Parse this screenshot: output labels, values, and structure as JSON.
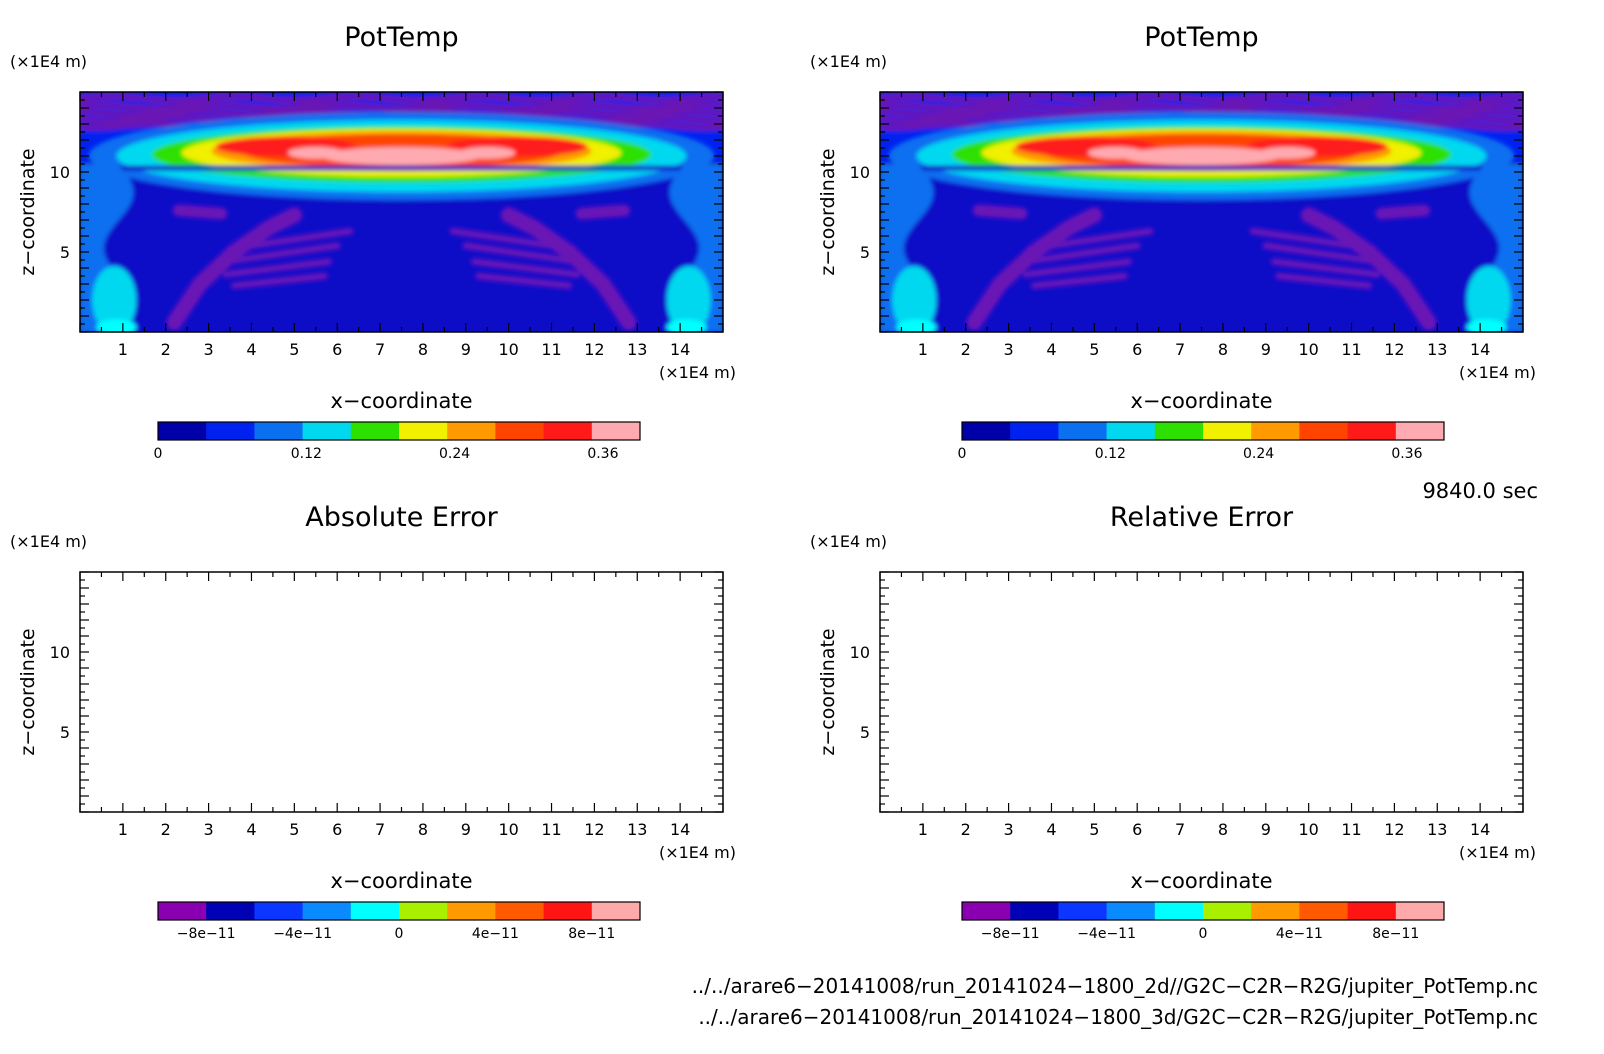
{
  "chart_data": [
    {
      "type": "heatmap",
      "title": "PotTemp",
      "xlabel": "x−coordinate",
      "ylabel": "z−coordinate",
      "x_unit": "(×1E4 m)",
      "y_unit": "(×1E4 m)",
      "xlim": [
        0,
        15
      ],
      "ylim": [
        0,
        15
      ],
      "xticks": [
        "1",
        "2",
        "3",
        "4",
        "5",
        "6",
        "7",
        "8",
        "9",
        "10",
        "11",
        "12",
        "13",
        "14"
      ],
      "yticks": [
        "5",
        "10"
      ],
      "colorbar": {
        "min": 0,
        "max": 0.39,
        "tick_values": [
          0,
          0.12,
          0.24,
          0.36
        ],
        "tick_labels": [
          "0",
          "0.12",
          "0.24",
          "0.36"
        ],
        "colors": [
          "#0000a8",
          "#0022f0",
          "#0a70f0",
          "#00d8f0",
          "#2ee000",
          "#f0f000",
          "#ff9a00",
          "#ff4400",
          "#ff1a1a",
          "#ffaab0"
        ]
      },
      "field": "plume: peak ~0.39 in a layer near z=11, low-value plumes on each side"
    },
    {
      "type": "heatmap",
      "title": "PotTemp",
      "xlabel": "x−coordinate",
      "ylabel": "z−coordinate",
      "x_unit": "(×1E4 m)",
      "y_unit": "(×1E4 m)",
      "xlim": [
        0,
        15
      ],
      "ylim": [
        0,
        15
      ],
      "xticks": [
        "1",
        "2",
        "3",
        "4",
        "5",
        "6",
        "7",
        "8",
        "9",
        "10",
        "11",
        "12",
        "13",
        "14"
      ],
      "yticks": [
        "5",
        "10"
      ],
      "colorbar": {
        "min": 0,
        "max": 0.39,
        "tick_values": [
          0,
          0.12,
          0.24,
          0.36
        ],
        "tick_labels": [
          "0",
          "0.12",
          "0.24",
          "0.36"
        ],
        "colors": [
          "#0000a8",
          "#0022f0",
          "#0a70f0",
          "#00d8f0",
          "#2ee000",
          "#f0f000",
          "#ff9a00",
          "#ff4400",
          "#ff1a1a",
          "#ffaab0"
        ]
      },
      "field": "identical to left panel"
    },
    {
      "type": "heatmap",
      "title": "Absolute Error",
      "xlabel": "x−coordinate",
      "ylabel": "z−coordinate",
      "x_unit": "(×1E4 m)",
      "y_unit": "(×1E4 m)",
      "xlim": [
        0,
        15
      ],
      "ylim": [
        0,
        15
      ],
      "xticks": [
        "1",
        "2",
        "3",
        "4",
        "5",
        "6",
        "7",
        "8",
        "9",
        "10",
        "11",
        "12",
        "13",
        "14"
      ],
      "yticks": [
        "5",
        "10"
      ],
      "colorbar": {
        "min": -1e-10,
        "max": 1e-10,
        "tick_values": [
          -8e-11,
          -4e-11,
          0,
          4e-11,
          8e-11
        ],
        "tick_labels": [
          "−8e−11",
          "−4e−11",
          "0",
          "4e−11",
          "8e−11"
        ],
        "colors": [
          "#8a00b0",
          "#0000b4",
          "#0a36ff",
          "#0a8aff",
          "#00ffff",
          "#a8f000",
          "#ff9a00",
          "#ff5a00",
          "#ff1414",
          "#ffaaaa"
        ]
      },
      "field": "empty (all values zero / blank)"
    },
    {
      "type": "heatmap",
      "title": "Relative Error",
      "xlabel": "x−coordinate",
      "ylabel": "z−coordinate",
      "x_unit": "(×1E4 m)",
      "y_unit": "(×1E4 m)",
      "xlim": [
        0,
        15
      ],
      "ylim": [
        0,
        15
      ],
      "xticks": [
        "1",
        "2",
        "3",
        "4",
        "5",
        "6",
        "7",
        "8",
        "9",
        "10",
        "11",
        "12",
        "13",
        "14"
      ],
      "yticks": [
        "5",
        "10"
      ],
      "colorbar": {
        "min": -1e-10,
        "max": 1e-10,
        "tick_values": [
          -8e-11,
          -4e-11,
          0,
          4e-11,
          8e-11
        ],
        "tick_labels": [
          "−8e−11",
          "−4e−11",
          "0",
          "4e−11",
          "8e−11"
        ],
        "colors": [
          "#8a00b0",
          "#0000b4",
          "#0a36ff",
          "#0a8aff",
          "#00ffff",
          "#a8f000",
          "#ff9a00",
          "#ff5a00",
          "#ff1414",
          "#ffaaaa"
        ]
      },
      "field": "empty (all values zero / blank)"
    }
  ],
  "time_label": "9840.0 sec",
  "file_paths": [
    "../../arare6−20141008/run_20141024−1800_2d//G2C−C2R−R2G/jupiter_PotTemp.nc",
    "../../arare6−20141008/run_20141024−1800_3d/G2C−C2R−R2G/jupiter_PotTemp.nc"
  ]
}
